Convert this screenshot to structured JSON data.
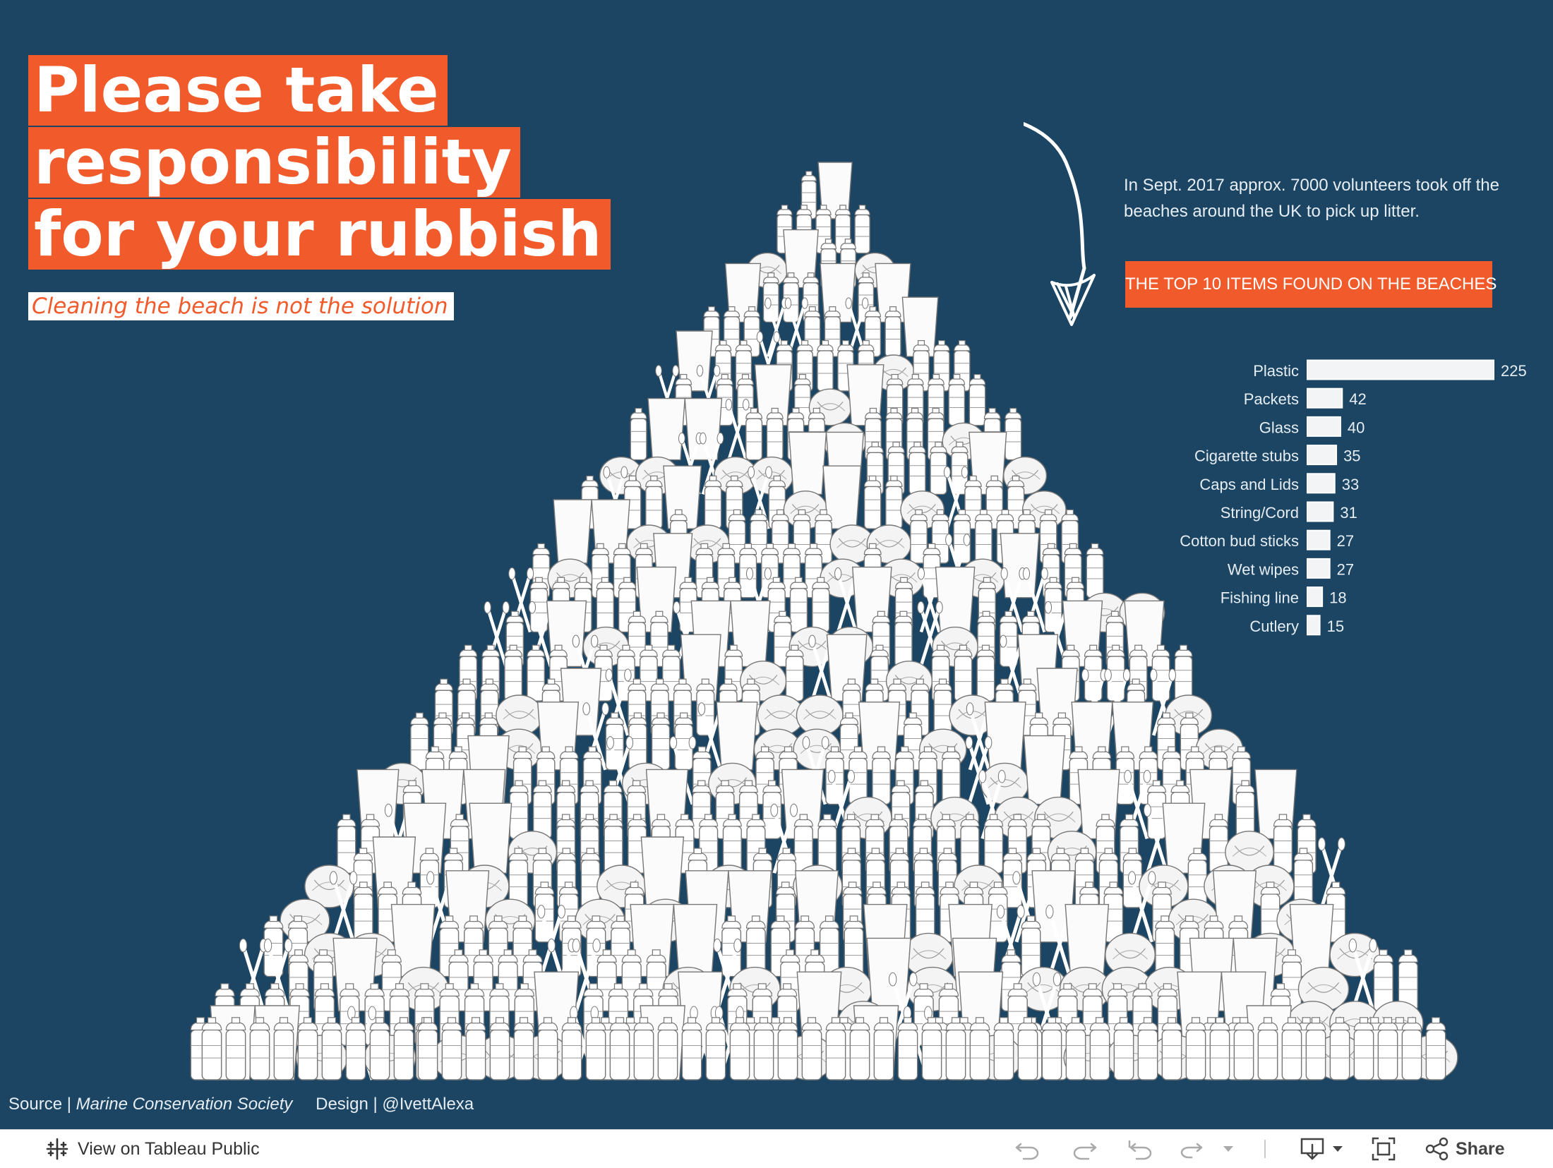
{
  "title": {
    "line1": "Please take",
    "line2": "responsibility",
    "line3": "for your rubbish",
    "subtitle": "Cleaning the beach is not the solution"
  },
  "intro": "In Sept. 2017 approx. 7000 volunteers took off the beaches around the UK to pick up litter.",
  "top10_heading": "THE TOP 10 ITEMS FOUND ON THE BEACHES",
  "chart_data": {
    "type": "bar",
    "orientation": "horizontal",
    "categories": [
      "Plastic",
      "Packets",
      "Glass",
      "Cigarette stubs",
      "Caps and Lids",
      "String/Cord",
      "Cotton bud sticks",
      "Wet wipes",
      "Fishing line",
      "Cutlery"
    ],
    "values": [
      225,
      42,
      40,
      35,
      33,
      31,
      27,
      27,
      18,
      15
    ],
    "title": "THE TOP 10 ITEMS FOUND ON THE BEACHES",
    "xlabel": "",
    "ylabel": "",
    "xlim": [
      0,
      225
    ],
    "grid": false,
    "data_labels": true,
    "bar_color": "#f2f4f6"
  },
  "footer": {
    "source_label": "Source |",
    "source_name": "Marine Conservation Society",
    "design_label": "Design |",
    "design_name": "@IvettAlexa"
  },
  "toolbar": {
    "view_label": "View on Tableau Public",
    "share_label": "Share",
    "icons": [
      "tableau-logo-icon",
      "undo-icon",
      "redo-icon",
      "revert-icon",
      "refresh-icon",
      "pause-caret-icon",
      "download-icon",
      "fullscreen-icon",
      "share-icon"
    ]
  },
  "colors": {
    "background": "#1b4563",
    "accent": "#f15a2b",
    "text": "#e6edf3",
    "bar": "#f2f4f6",
    "toolbar_bg": "#ffffff"
  },
  "illustration": "pile-of-litter-icon"
}
